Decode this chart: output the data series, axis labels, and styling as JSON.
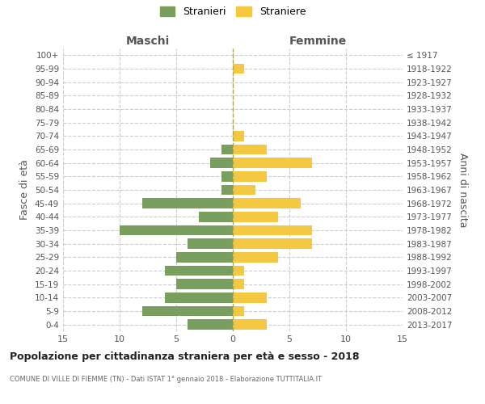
{
  "age_groups": [
    "0-4",
    "5-9",
    "10-14",
    "15-19",
    "20-24",
    "25-29",
    "30-34",
    "35-39",
    "40-44",
    "45-49",
    "50-54",
    "55-59",
    "60-64",
    "65-69",
    "70-74",
    "75-79",
    "80-84",
    "85-89",
    "90-94",
    "95-99",
    "100+"
  ],
  "birth_years": [
    "2013-2017",
    "2008-2012",
    "2003-2007",
    "1998-2002",
    "1993-1997",
    "1988-1992",
    "1983-1987",
    "1978-1982",
    "1973-1977",
    "1968-1972",
    "1963-1967",
    "1958-1962",
    "1953-1957",
    "1948-1952",
    "1943-1947",
    "1938-1942",
    "1933-1937",
    "1928-1932",
    "1923-1927",
    "1918-1922",
    "≤ 1917"
  ],
  "maschi": [
    4,
    8,
    6,
    5,
    6,
    5,
    4,
    10,
    3,
    8,
    1,
    1,
    2,
    1,
    0,
    0,
    0,
    0,
    0,
    0,
    0
  ],
  "femmine": [
    3,
    1,
    3,
    1,
    1,
    4,
    7,
    7,
    4,
    6,
    2,
    3,
    7,
    3,
    1,
    0,
    0,
    0,
    0,
    1,
    0
  ],
  "maschi_color": "#7a9e5e",
  "femmine_color": "#f5c842",
  "background_color": "#ffffff",
  "grid_color": "#cccccc",
  "title": "Popolazione per cittadinanza straniera per età e sesso - 2018",
  "subtitle": "COMUNE DI VILLE DI FIEMME (TN) - Dati ISTAT 1° gennaio 2018 - Elaborazione TUTTITALIA.IT",
  "ylabel_left": "Fasce di età",
  "ylabel_right": "Anni di nascita",
  "xlabel_maschi": "Maschi",
  "xlabel_femmine": "Femmine",
  "legend_stranieri": "Stranieri",
  "legend_straniere": "Straniere",
  "xlim": 15,
  "bar_height": 0.75
}
